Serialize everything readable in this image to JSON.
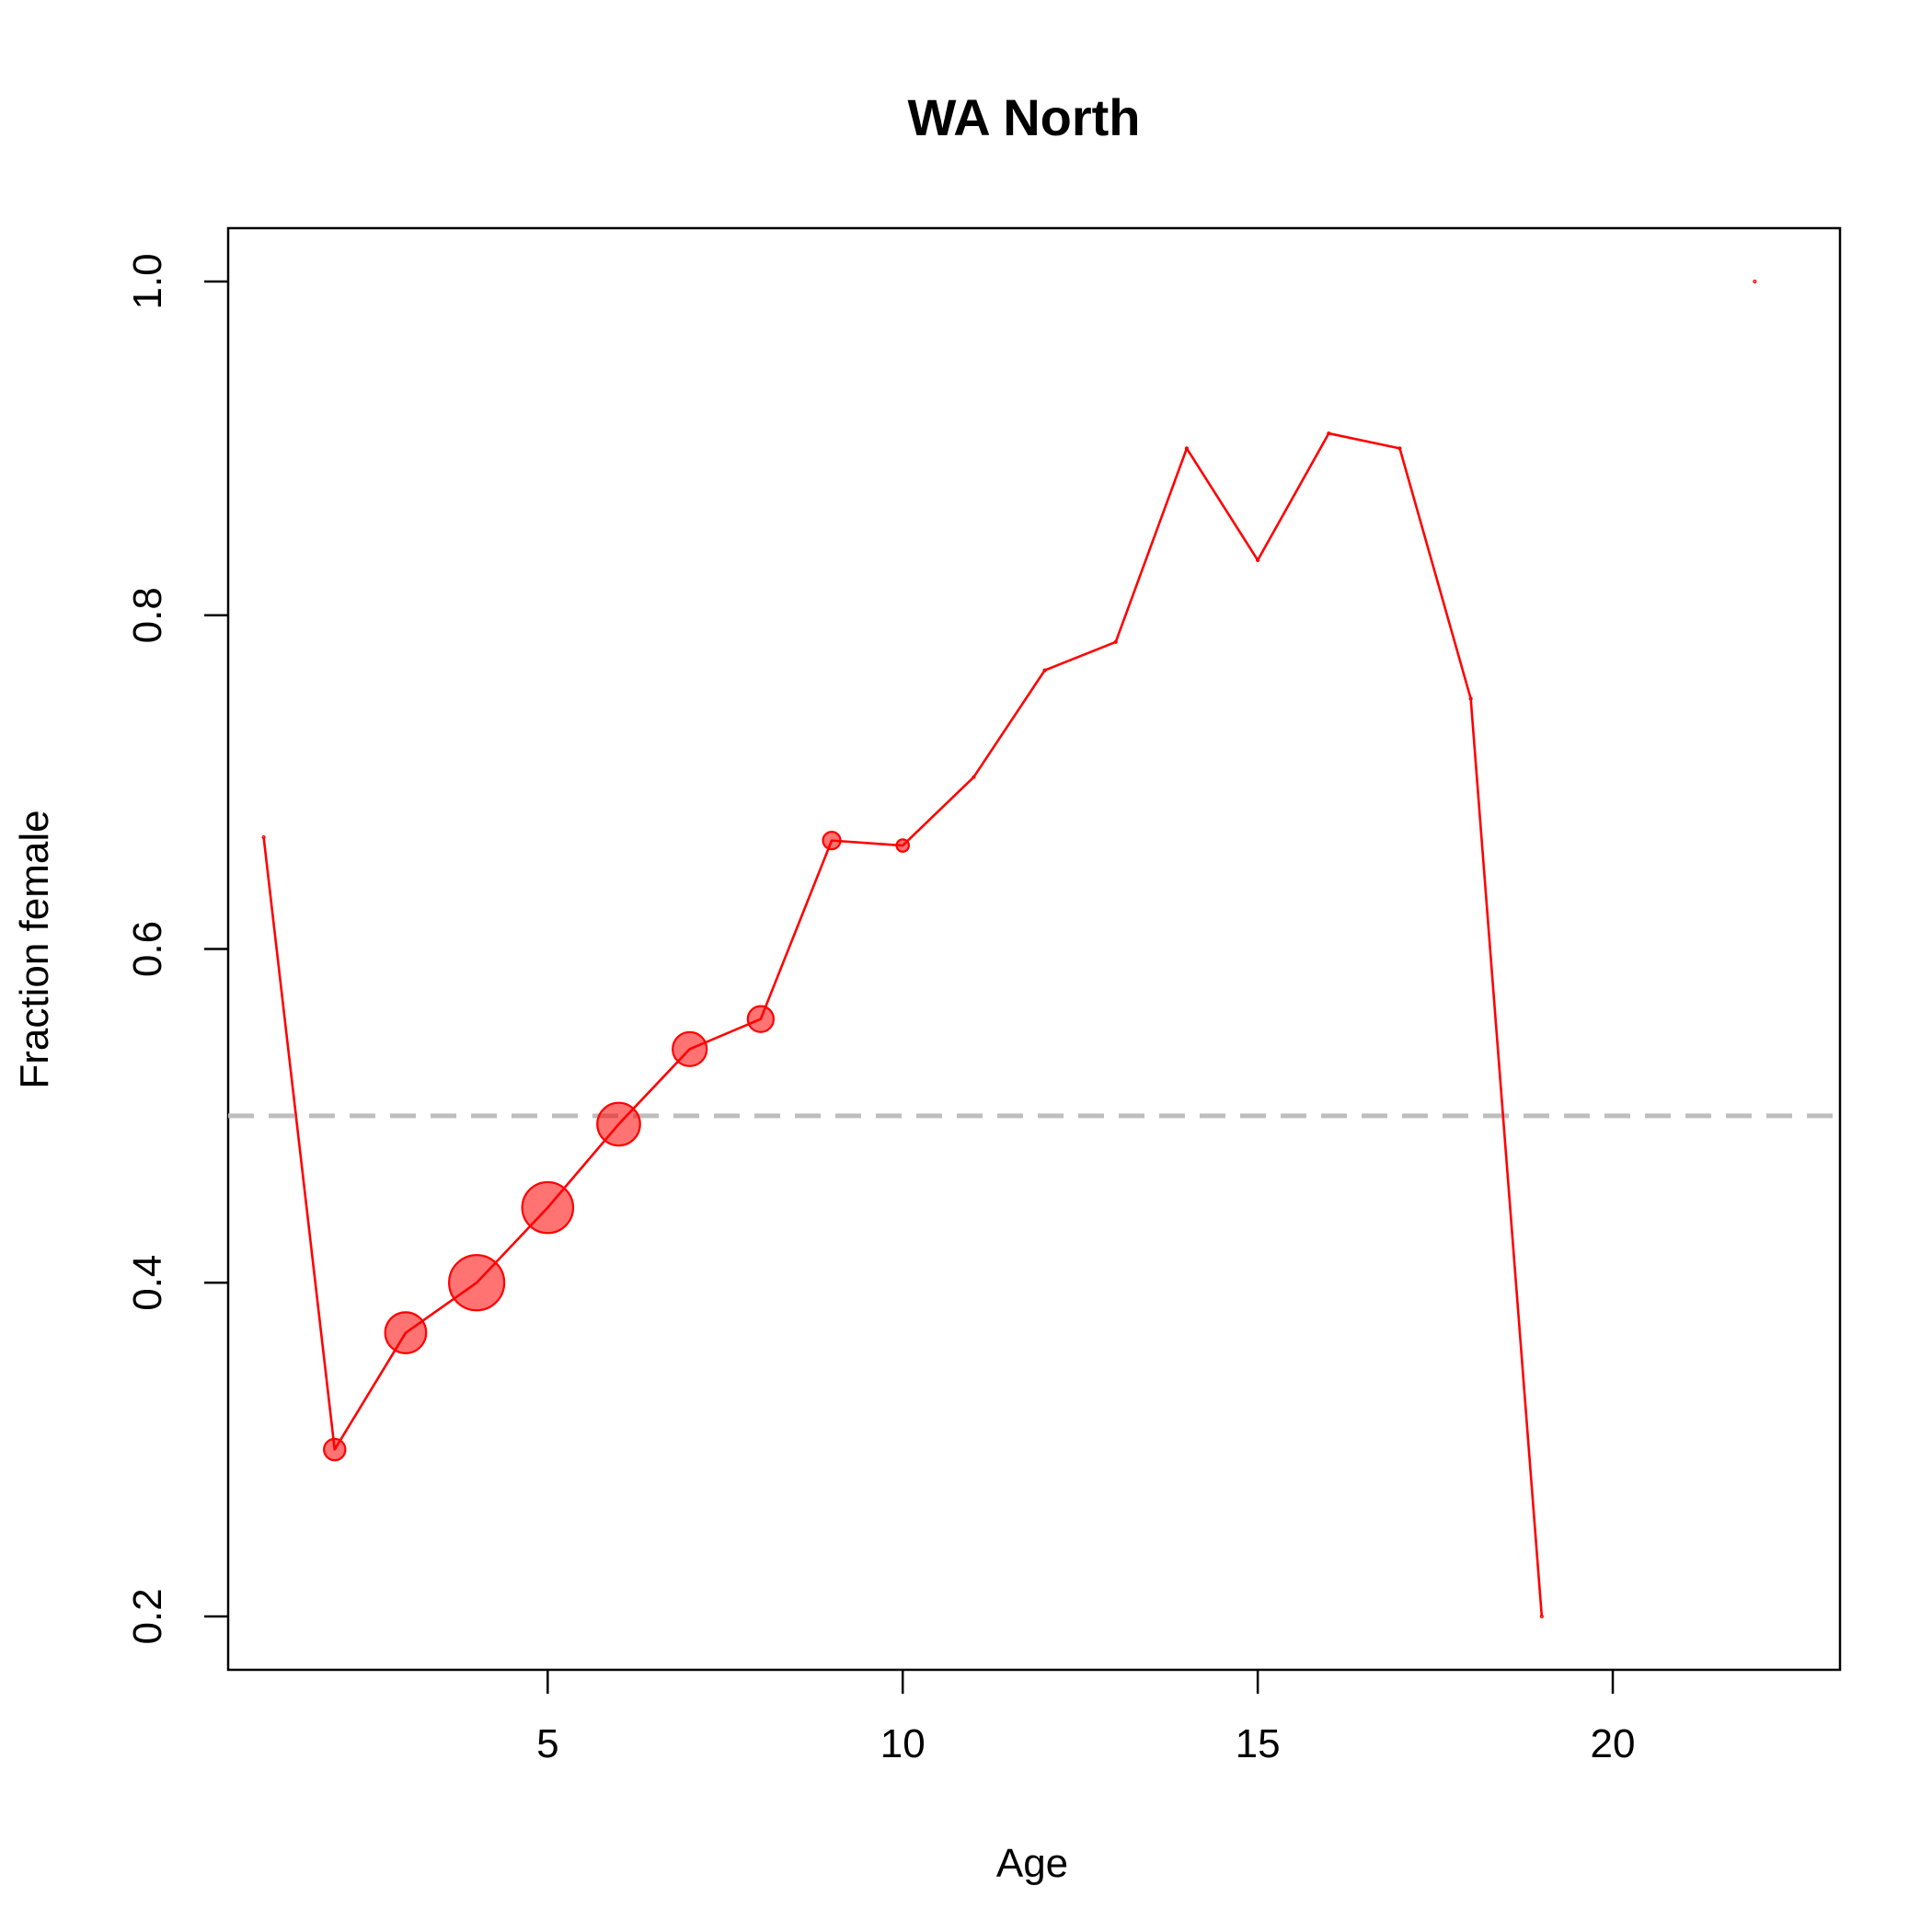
{
  "chart_data": {
    "type": "line",
    "title": "WA North",
    "xlabel": "Age",
    "ylabel": "Fraction female",
    "xlim": [
      0.5,
      23.2
    ],
    "ylim": [
      0.168,
      1.032
    ],
    "x_ticks": [
      5,
      10,
      15,
      20
    ],
    "x_tick_labels": [
      "5",
      "10",
      "15",
      "20"
    ],
    "y_ticks": [
      0.2,
      0.4,
      0.6,
      0.8,
      1.0
    ],
    "y_tick_labels": [
      "0.2",
      "0.4",
      "0.6",
      "0.8",
      "1.0"
    ],
    "reference_line": {
      "y": 0.5,
      "style": "dashed",
      "color": "#bebebe"
    },
    "series_color": "#ff0000",
    "point_fill": "rgba(255,0,0,0.55)",
    "points": [
      {
        "x": 1,
        "y": 0.667,
        "size": 0
      },
      {
        "x": 2,
        "y": 0.3,
        "size": 0.15
      },
      {
        "x": 3,
        "y": 0.37,
        "size": 0.55
      },
      {
        "x": 4,
        "y": 0.4,
        "size": 1.0
      },
      {
        "x": 5,
        "y": 0.445,
        "size": 0.85
      },
      {
        "x": 6,
        "y": 0.495,
        "size": 0.6
      },
      {
        "x": 7,
        "y": 0.54,
        "size": 0.38
      },
      {
        "x": 8,
        "y": 0.558,
        "size": 0.22
      },
      {
        "x": 9,
        "y": 0.665,
        "size": 0.1
      },
      {
        "x": 10,
        "y": 0.662,
        "size": 0.05
      },
      {
        "x": 11,
        "y": 0.703,
        "size": 0
      },
      {
        "x": 12,
        "y": 0.767,
        "size": 0
      },
      {
        "x": 13,
        "y": 0.784,
        "size": 0
      },
      {
        "x": 14,
        "y": 0.9,
        "size": 0
      },
      {
        "x": 15,
        "y": 0.833,
        "size": 0
      },
      {
        "x": 16,
        "y": 0.909,
        "size": 0
      },
      {
        "x": 17,
        "y": 0.9,
        "size": 0
      },
      {
        "x": 18,
        "y": 0.75,
        "size": 0
      },
      {
        "x": 19,
        "y": 0.2,
        "size": 0
      }
    ],
    "isolated_points": [
      {
        "x": 22,
        "y": 1.0,
        "size": 0
      }
    ]
  }
}
